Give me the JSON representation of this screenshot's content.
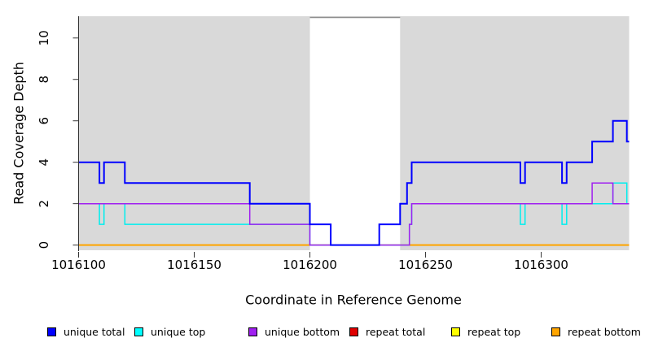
{
  "chart_data": {
    "type": "line",
    "subtype": "step-post-coverage",
    "title": "",
    "xlabel": "Coordinate in Reference Genome",
    "ylabel": "Read Coverage Depth",
    "xlim": [
      1016100,
      1016338
    ],
    "ylim": [
      -0.25,
      11.05
    ],
    "x_ticks": [
      1016100,
      1016150,
      1016200,
      1016250,
      1016300
    ],
    "y_ticks": [
      0,
      2,
      4,
      6,
      8,
      10
    ],
    "grid": false,
    "background_color": "#d9d9d9",
    "gap_region": {
      "from": 1016200,
      "to": 1016239,
      "color": "#ffffff"
    },
    "series": [
      {
        "name": "repeat total",
        "color": "#e00000",
        "width": 1.5,
        "points": [
          [
            1016100,
            0
          ],
          [
            1016338,
            0
          ]
        ]
      },
      {
        "name": "repeat top",
        "color": "#ffff00",
        "width": 1.5,
        "points": [
          [
            1016100,
            0
          ],
          [
            1016338,
            0
          ]
        ]
      },
      {
        "name": "repeat bottom",
        "color": "#ffa500",
        "width": 2,
        "segments": [
          [
            [
              1016100,
              0
            ],
            [
              1016200,
              0
            ]
          ],
          [
            [
              1016243,
              0
            ],
            [
              1016338,
              0
            ]
          ]
        ]
      },
      {
        "name": "unique top",
        "color": "#00eeee",
        "width": 1.5,
        "points": [
          [
            1016100,
            2
          ],
          [
            1016109,
            1
          ],
          [
            1016111,
            2
          ],
          [
            1016120,
            1
          ],
          [
            1016200,
            0
          ],
          [
            1016243,
            1
          ],
          [
            1016244,
            2
          ],
          [
            1016291,
            1
          ],
          [
            1016293,
            2
          ],
          [
            1016309,
            1
          ],
          [
            1016311,
            2
          ],
          [
            1016331,
            3
          ],
          [
            1016337,
            2
          ],
          [
            1016338,
            2
          ]
        ]
      },
      {
        "name": "unique bottom",
        "color": "#a020f0",
        "width": 1.5,
        "points": [
          [
            1016100,
            2
          ],
          [
            1016174,
            1
          ],
          [
            1016200,
            0
          ],
          [
            1016243,
            1
          ],
          [
            1016244,
            2
          ],
          [
            1016322,
            3
          ],
          [
            1016331,
            2
          ],
          [
            1016338,
            2
          ]
        ]
      },
      {
        "name": "unique total",
        "color": "#0000ff",
        "width": 2,
        "points": [
          [
            1016100,
            4
          ],
          [
            1016109,
            3
          ],
          [
            1016111,
            4
          ],
          [
            1016120,
            3
          ],
          [
            1016174,
            2
          ],
          [
            1016200,
            1
          ],
          [
            1016209,
            0
          ],
          [
            1016230,
            1
          ],
          [
            1016239,
            2
          ],
          [
            1016242,
            3
          ],
          [
            1016244,
            4
          ],
          [
            1016291,
            3
          ],
          [
            1016293,
            4
          ],
          [
            1016309,
            3
          ],
          [
            1016311,
            4
          ],
          [
            1016322,
            5
          ],
          [
            1016331,
            6
          ],
          [
            1016337,
            5
          ],
          [
            1016338,
            5
          ]
        ]
      }
    ],
    "legend_position": "bottom"
  },
  "legend": {
    "items": [
      {
        "label": "unique total",
        "color": "#0000ff"
      },
      {
        "label": "unique top",
        "color": "#00ffff"
      },
      {
        "label": "unique bottom",
        "color": "#a020f0"
      },
      {
        "label": "repeat total",
        "color": "#e00000"
      },
      {
        "label": "repeat top",
        "color": "#ffff00"
      },
      {
        "label": "repeat bottom",
        "color": "#ffa500"
      }
    ]
  }
}
